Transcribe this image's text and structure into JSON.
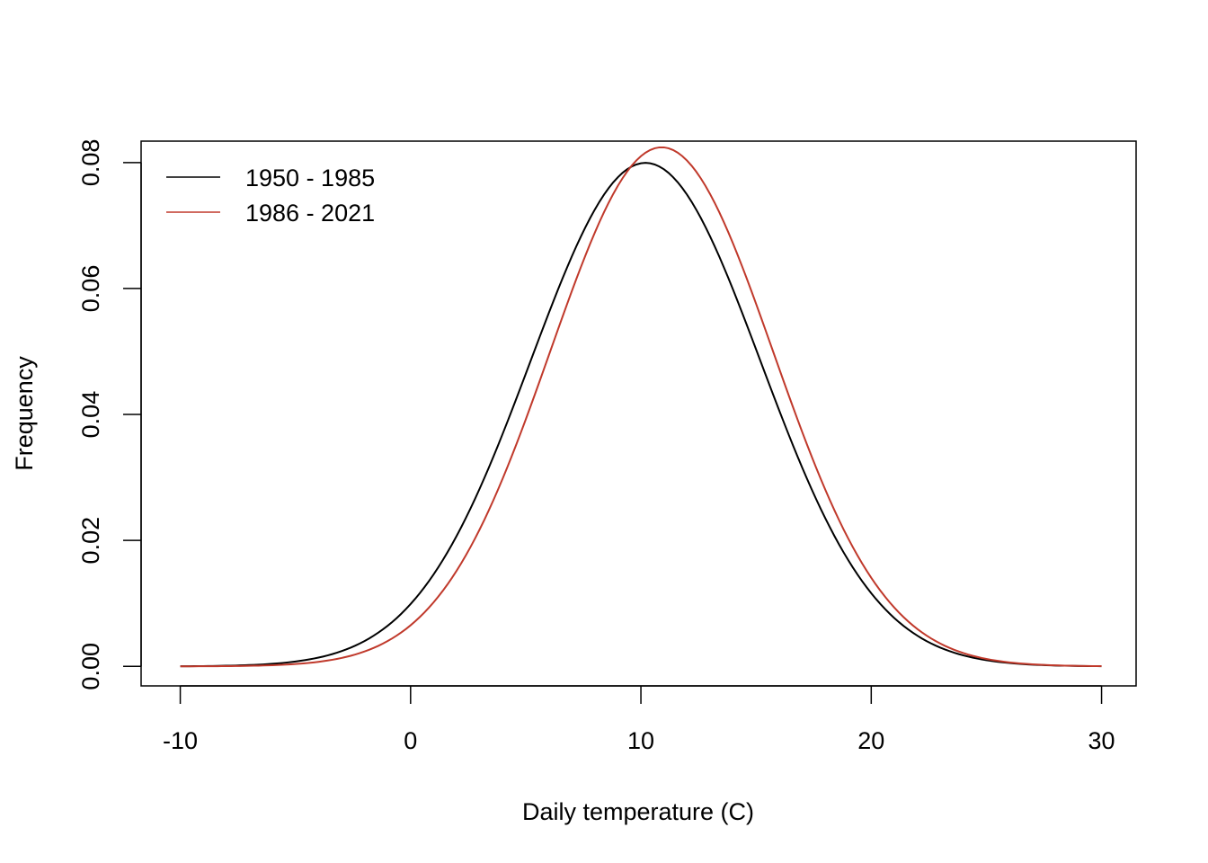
{
  "chart_data": {
    "type": "line",
    "title": "",
    "xlabel": "Daily temperature (C)",
    "ylabel": "Frequency",
    "xlim": [
      -11.7,
      31.5
    ],
    "ylim": [
      -0.0031,
      0.0834
    ],
    "x_ticks": [
      -10,
      0,
      10,
      20,
      30
    ],
    "x_tick_labels": [
      "-10",
      "0",
      "10",
      "20",
      "30"
    ],
    "y_ticks": [
      0.0,
      0.02,
      0.04,
      0.06,
      0.08
    ],
    "y_tick_labels": [
      "0.00",
      "0.02",
      "0.04",
      "0.06",
      "0.08"
    ],
    "grid": false,
    "legend_position": "top-left",
    "series": [
      {
        "name": "1950 - 1985",
        "color": "#000000",
        "distribution": {
          "kind": "normal",
          "mean": 10.2,
          "sd": 4.99
        },
        "x_range": [
          -10,
          30
        ],
        "peak": {
          "x": 10.2,
          "y": 0.08
        }
      },
      {
        "name": "1986 - 2021",
        "color": "#c0392b",
        "distribution": {
          "kind": "normal",
          "mean": 10.9,
          "sd": 4.84
        },
        "x_range": [
          -10,
          30
        ],
        "peak": {
          "x": 10.9,
          "y": 0.0825
        }
      }
    ]
  }
}
